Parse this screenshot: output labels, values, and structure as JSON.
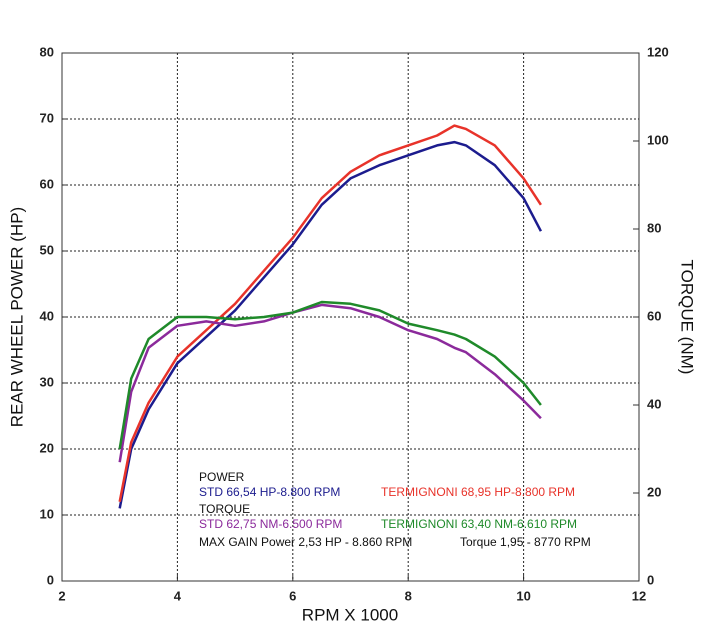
{
  "chart_data": {
    "type": "line",
    "xlabel": "RPM X 1000",
    "ylabel": "REAR WHEEL POWER (HP)",
    "y2label": "TORQUE (NM)",
    "xlim": [
      2,
      12
    ],
    "xticks": [
      2,
      4,
      6,
      8,
      10,
      12
    ],
    "ylim": [
      0,
      80
    ],
    "yticks": [
      0,
      10,
      20,
      30,
      40,
      50,
      60,
      70,
      80
    ],
    "y2lim": [
      0,
      120
    ],
    "y2ticks": [
      0,
      20,
      40,
      60,
      80,
      100,
      120
    ],
    "grid": true,
    "x": [
      3.0,
      3.2,
      3.5,
      4,
      4.5,
      5,
      5.5,
      6,
      6.5,
      7,
      7.5,
      8,
      8.5,
      8.8,
      9,
      9.5,
      10,
      10.3
    ],
    "legend_groups": [
      "POWER",
      "TORQUE"
    ],
    "annotations": [
      "MAX GAIN Power 2,53 HP - 8.860 RPM",
      "Torque 1,95 - 8770 RPM"
    ],
    "series": [
      {
        "name": "STD 66,54 HP-8.800 RPM",
        "color": "#1c1c8e",
        "values": [
          11,
          20,
          26,
          33,
          37,
          41,
          46,
          51,
          57,
          61,
          63,
          64.5,
          66,
          66.5,
          66,
          63,
          58,
          53
        ]
      },
      {
        "name": "TERMIGNONI 68,95 HP-8.800 RPM",
        "color": "#e8332a",
        "values": [
          12,
          21,
          27,
          34,
          38,
          42,
          47,
          52,
          58,
          62,
          64.5,
          66,
          67.5,
          69,
          68.5,
          66,
          61,
          57
        ]
      },
      {
        "name": "STD 62,75 NM-6.500 RPM",
        "color": "#8b2a9b",
        "axis": "y2",
        "values": [
          27,
          43,
          53,
          58,
          59,
          58,
          59,
          61,
          62.75,
          62,
          60,
          57,
          55,
          53,
          52,
          47,
          41,
          37
        ]
      },
      {
        "name": "TERMIGNONI 63,40 NM-6.610 RPM",
        "color": "#1f8a2a",
        "axis": "y2",
        "values": [
          30,
          46,
          55,
          60,
          60,
          59.5,
          60,
          61,
          63.4,
          63,
          61.5,
          58.5,
          57,
          56,
          55,
          51,
          45,
          40
        ]
      }
    ]
  }
}
